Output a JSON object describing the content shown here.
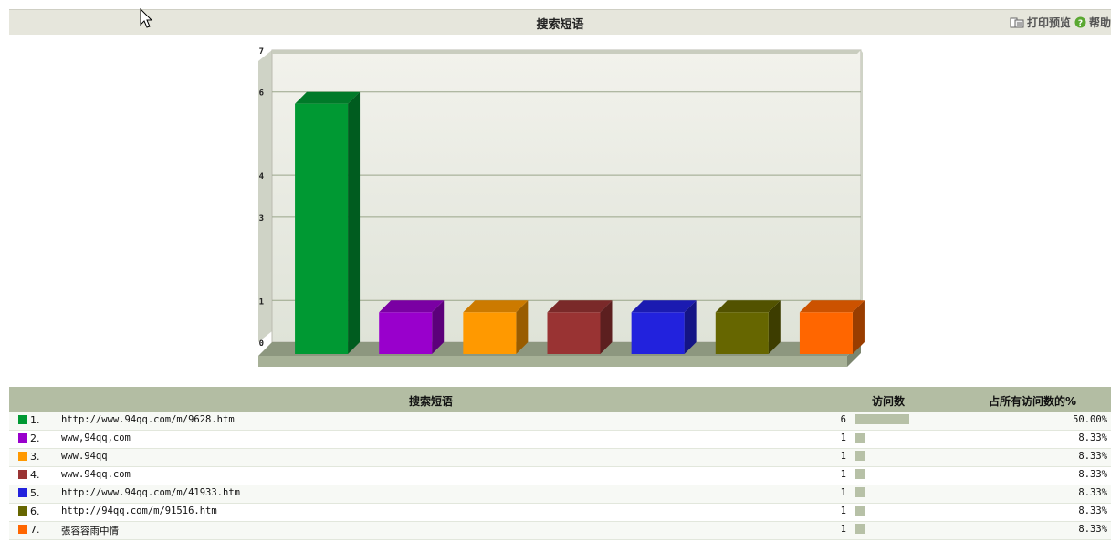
{
  "header": {
    "title": "搜索短语",
    "print_preview": "打印预览",
    "help": "帮助"
  },
  "table": {
    "columns": [
      "搜索短语",
      "访问数",
      "占所有访问数的%"
    ],
    "rows": [
      {
        "rank": "1.",
        "term": "http://www.94qq.com/m/9628.htm",
        "count": "6",
        "fraction": 0.5,
        "pct": "50.00%",
        "color": "#009933"
      },
      {
        "rank": "2.",
        "term": "www,94qq,com",
        "count": "1",
        "fraction": 0.0833,
        "pct": "8.33%",
        "color": "#9900cc"
      },
      {
        "rank": "3.",
        "term": "www.94qq",
        "count": "1",
        "fraction": 0.0833,
        "pct": "8.33%",
        "color": "#ff9900"
      },
      {
        "rank": "4.",
        "term": "www.94qq.com",
        "count": "1",
        "fraction": 0.0833,
        "pct": "8.33%",
        "color": "#993333"
      },
      {
        "rank": "5.",
        "term": "http://www.94qq.com/m/41933.htm",
        "count": "1",
        "fraction": 0.0833,
        "pct": "8.33%",
        "color": "#2222dd"
      },
      {
        "rank": "6.",
        "term": "http://94qq.com/m/91516.htm",
        "count": "1",
        "fraction": 0.0833,
        "pct": "8.33%",
        "color": "#666600"
      },
      {
        "rank": "7.",
        "term": "張容容雨中情",
        "count": "1",
        "fraction": 0.0833,
        "pct": "8.33%",
        "color": "#ff6600"
      }
    ]
  },
  "chart_data": {
    "type": "bar",
    "values": [
      6,
      1,
      1,
      1,
      1,
      1,
      1
    ],
    "colors": [
      "#009933",
      "#9900cc",
      "#ff9900",
      "#993333",
      "#2222dd",
      "#666600",
      "#ff6600"
    ],
    "yticks": [
      "0",
      "1",
      "3",
      "4",
      "6",
      "7"
    ],
    "ylim": [
      0,
      7
    ],
    "grid": true,
    "style": "3d"
  }
}
